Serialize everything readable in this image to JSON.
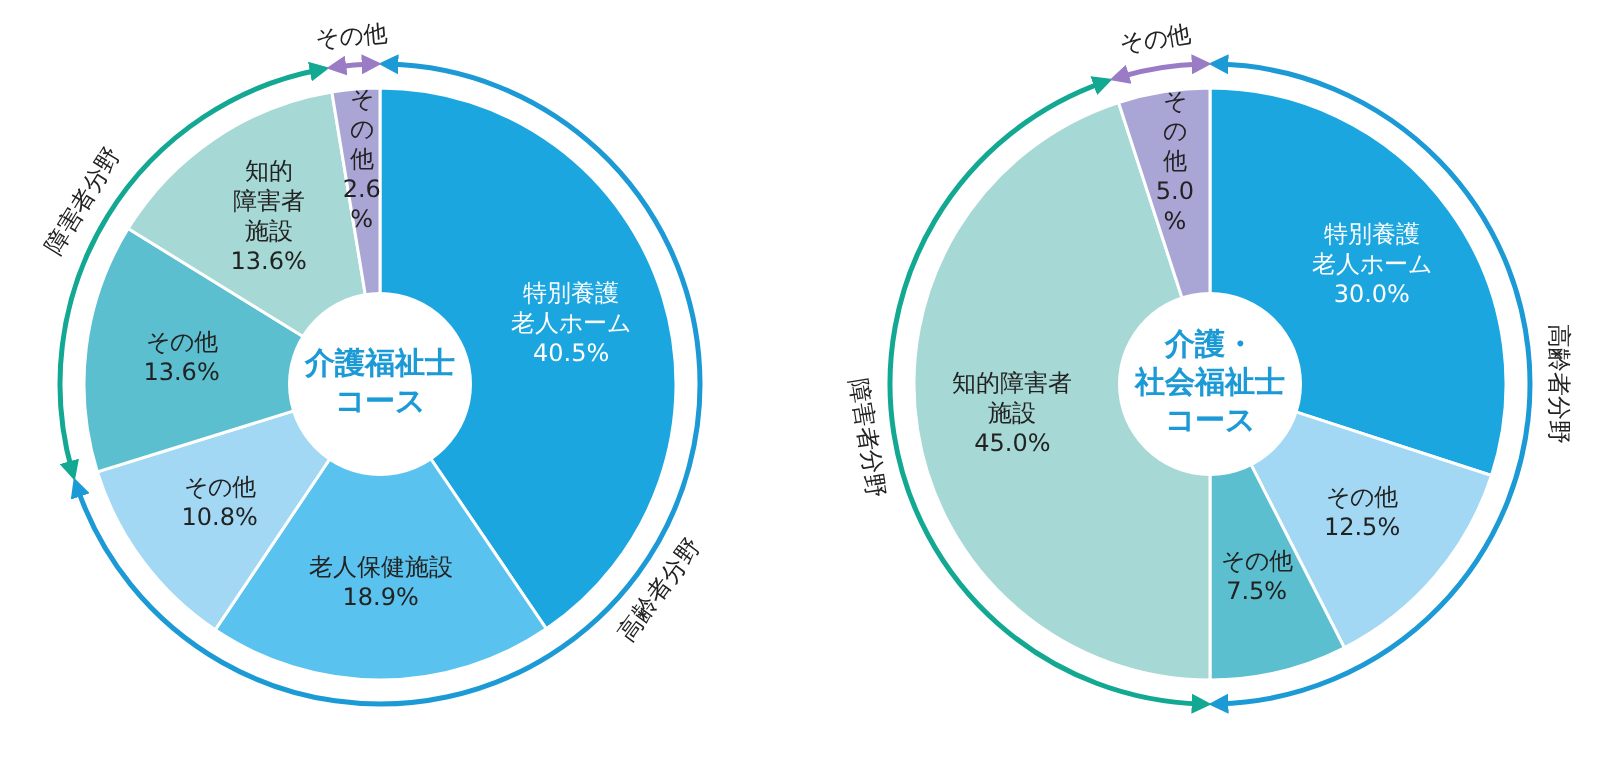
{
  "chart_data": [
    {
      "type": "donut",
      "title": "介護福祉士コース",
      "categories": [
        "特別養護老人ホーム",
        "老人保健施設",
        "その他",
        "その他",
        "知的障害者施設",
        "その他"
      ],
      "values": [
        40.5,
        18.9,
        10.8,
        13.6,
        13.6,
        2.6
      ],
      "value_labels": [
        "40.5%",
        "18.9%",
        "10.8%",
        "13.6%",
        "13.6%",
        "2.6 %"
      ],
      "colors": [
        "#1ba6e0",
        "#5ac2ee",
        "#a2d8f3",
        "#5bbfd0",
        "#a6d9d5",
        "#a9a6d6"
      ],
      "annotations": [
        "高齢者分野",
        "障害者分野",
        "その他"
      ]
    },
    {
      "type": "donut",
      "title": "介護・社会福祉士コース",
      "categories": [
        "特別養護老人ホーム",
        "その他",
        "その他",
        "知的障害者施設",
        "その他"
      ],
      "values": [
        30.0,
        12.5,
        7.5,
        45.0,
        5.0
      ],
      "value_labels": [
        "30.0%",
        "12.5%",
        "7.5%",
        "45.0%",
        "5.0 %"
      ],
      "colors": [
        "#1ba6e0",
        "#a2d8f3",
        "#5bbfd0",
        "#a6d9d5",
        "#a9a6d6"
      ],
      "annotations": [
        "高齢者分野",
        "障害者分野",
        "その他"
      ]
    }
  ]
}
